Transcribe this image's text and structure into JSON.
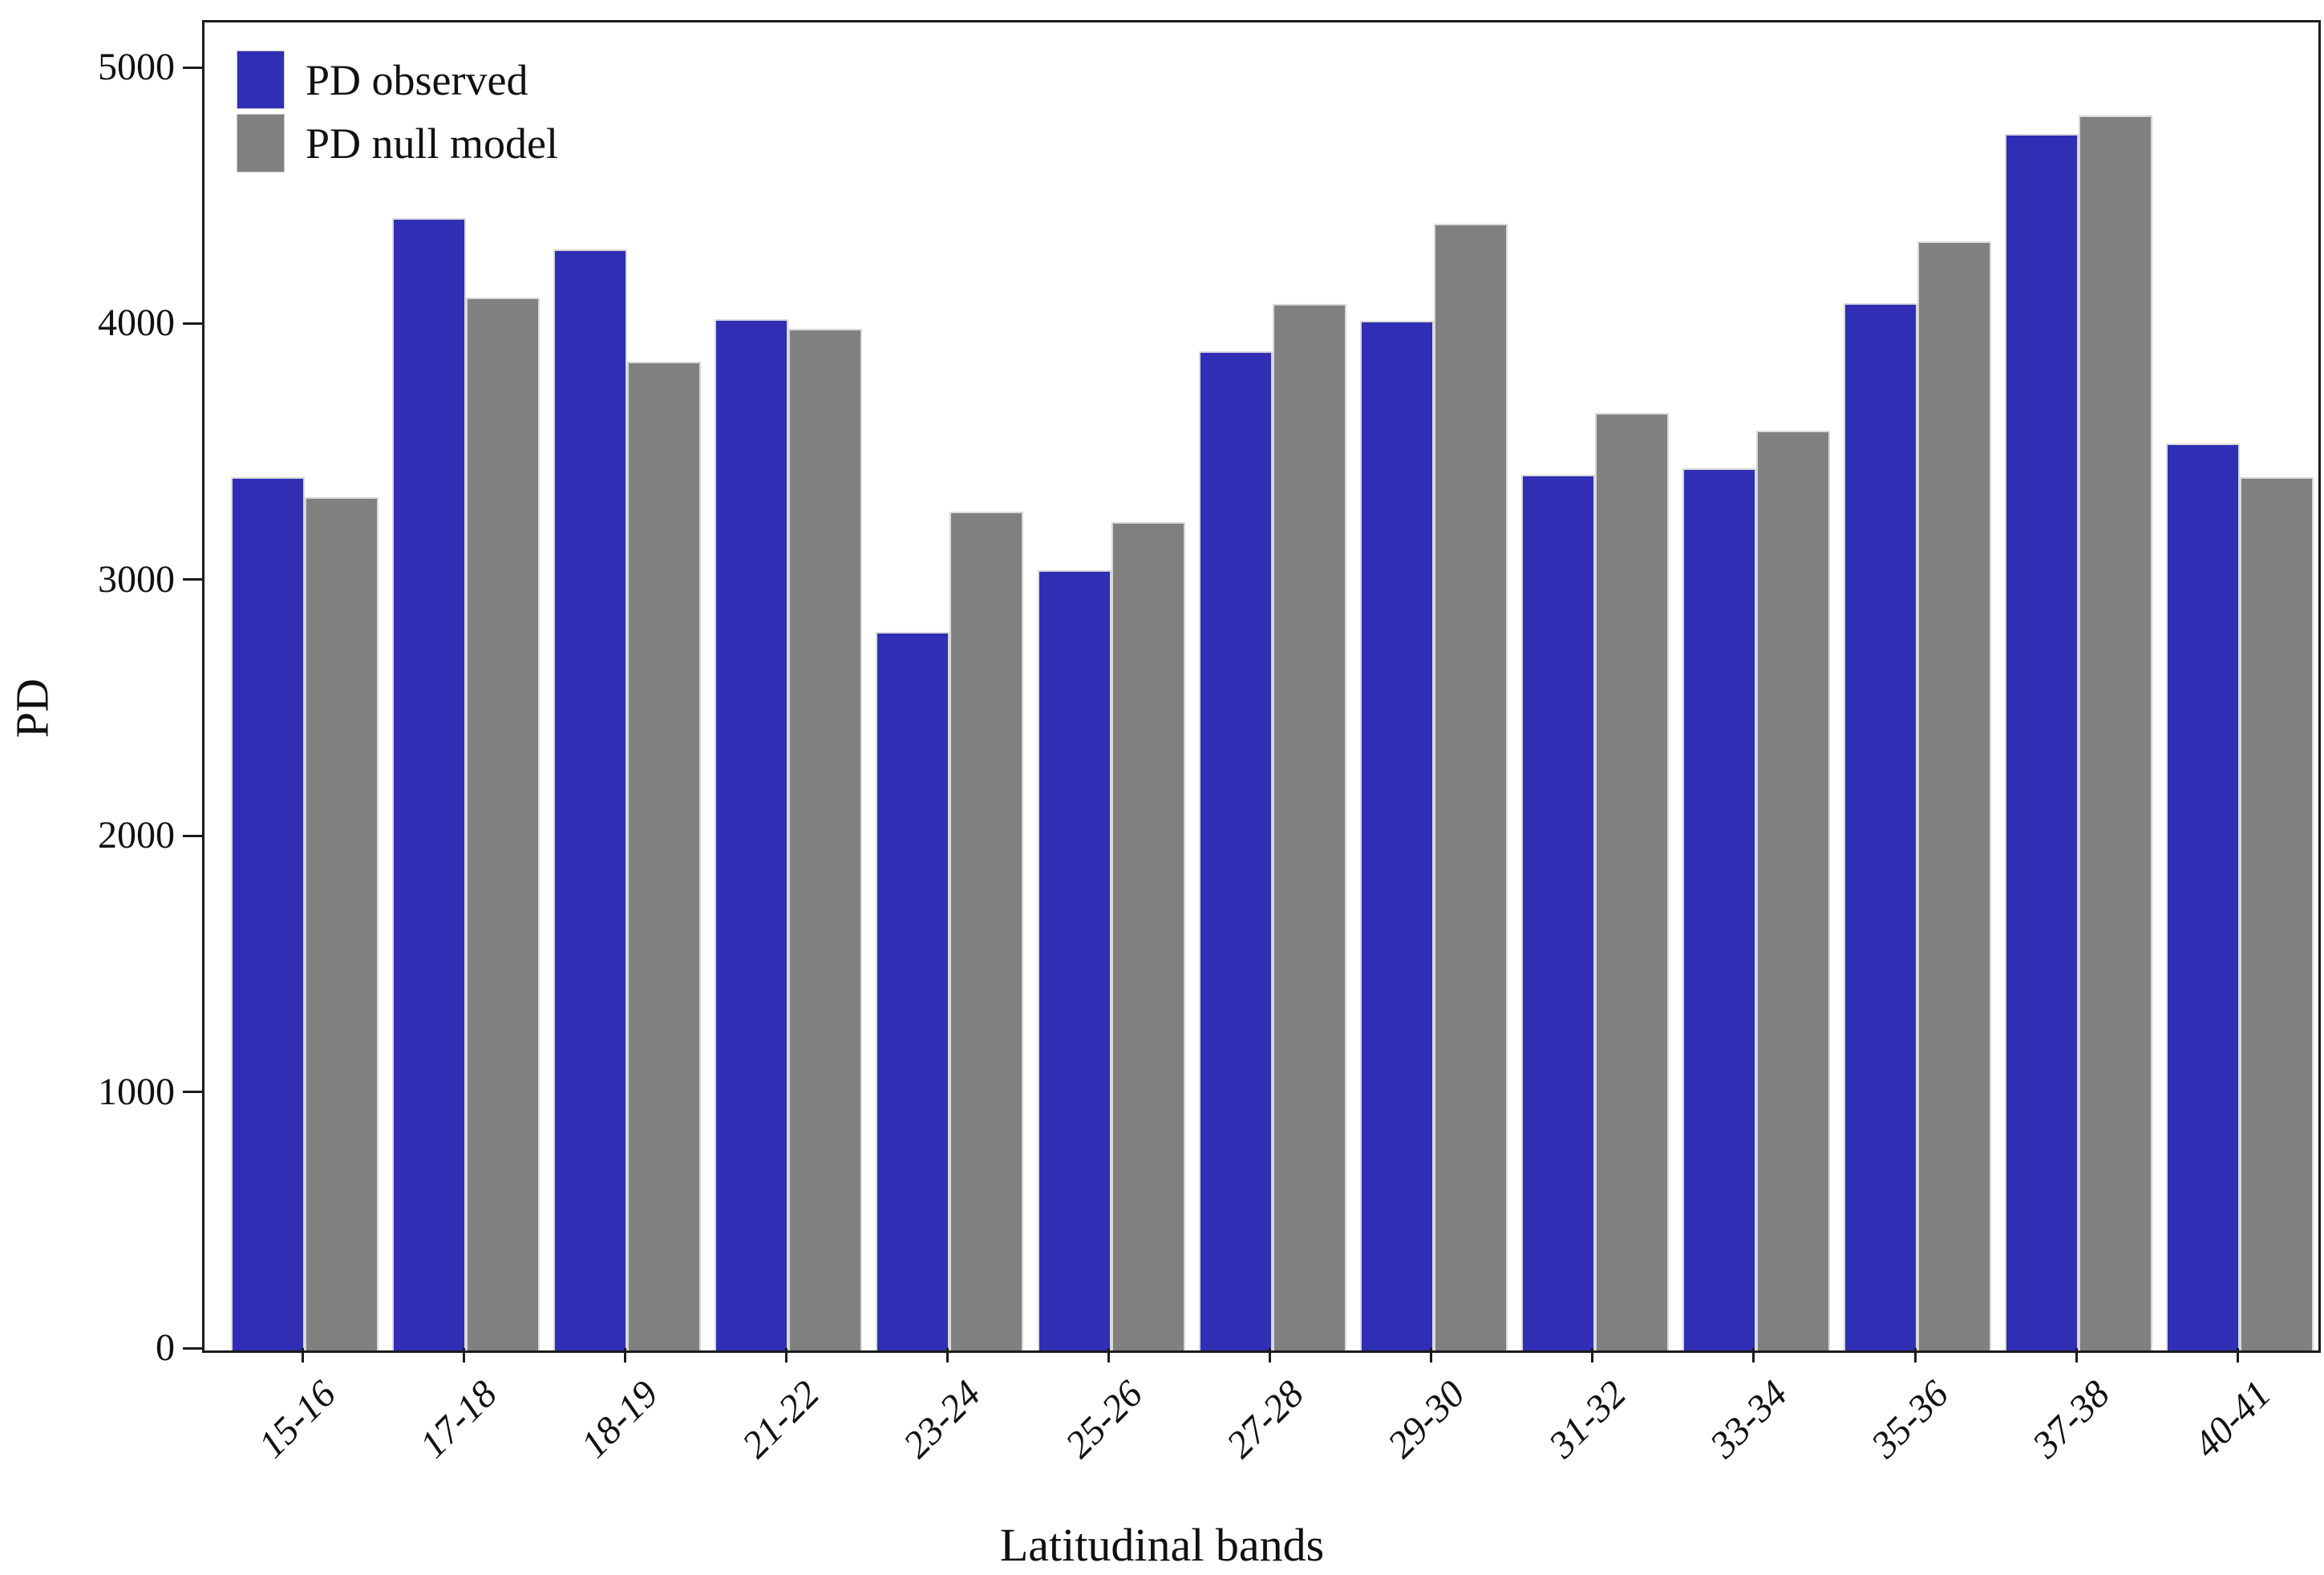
{
  "figure": {
    "ylabel": "PD",
    "xlabel": "Latitudinal bands"
  },
  "axis_color": "#1b1b1b",
  "chart_data": {
    "type": "bar",
    "title": "",
    "xlabel": "Latitudinal bands",
    "ylabel": "PD",
    "categories": [
      "15-16",
      "17-18",
      "18-19",
      "21-22",
      "23-24",
      "25-26",
      "27-28",
      "29-30",
      "31-32",
      "33-34",
      "35-36",
      "37-38",
      "40-41"
    ],
    "series": [
      {
        "name": "PD observed",
        "color": "#2f2eb4",
        "values": [
          3410,
          4420,
          4300,
          4025,
          2805,
          3045,
          3900,
          4020,
          3420,
          3445,
          4090,
          4750,
          3540
        ]
      },
      {
        "name": "PD null model",
        "color": "#808080",
        "values": [
          3330,
          4110,
          3860,
          3990,
          3275,
          3235,
          4085,
          4400,
          3660,
          3590,
          4330,
          4820,
          3410
        ]
      }
    ],
    "ylim": [
      0,
      5000
    ],
    "yticks": [
      0,
      1000,
      2000,
      3000,
      4000,
      5000
    ],
    "grid": false,
    "legend_position": "top-left-inside"
  }
}
